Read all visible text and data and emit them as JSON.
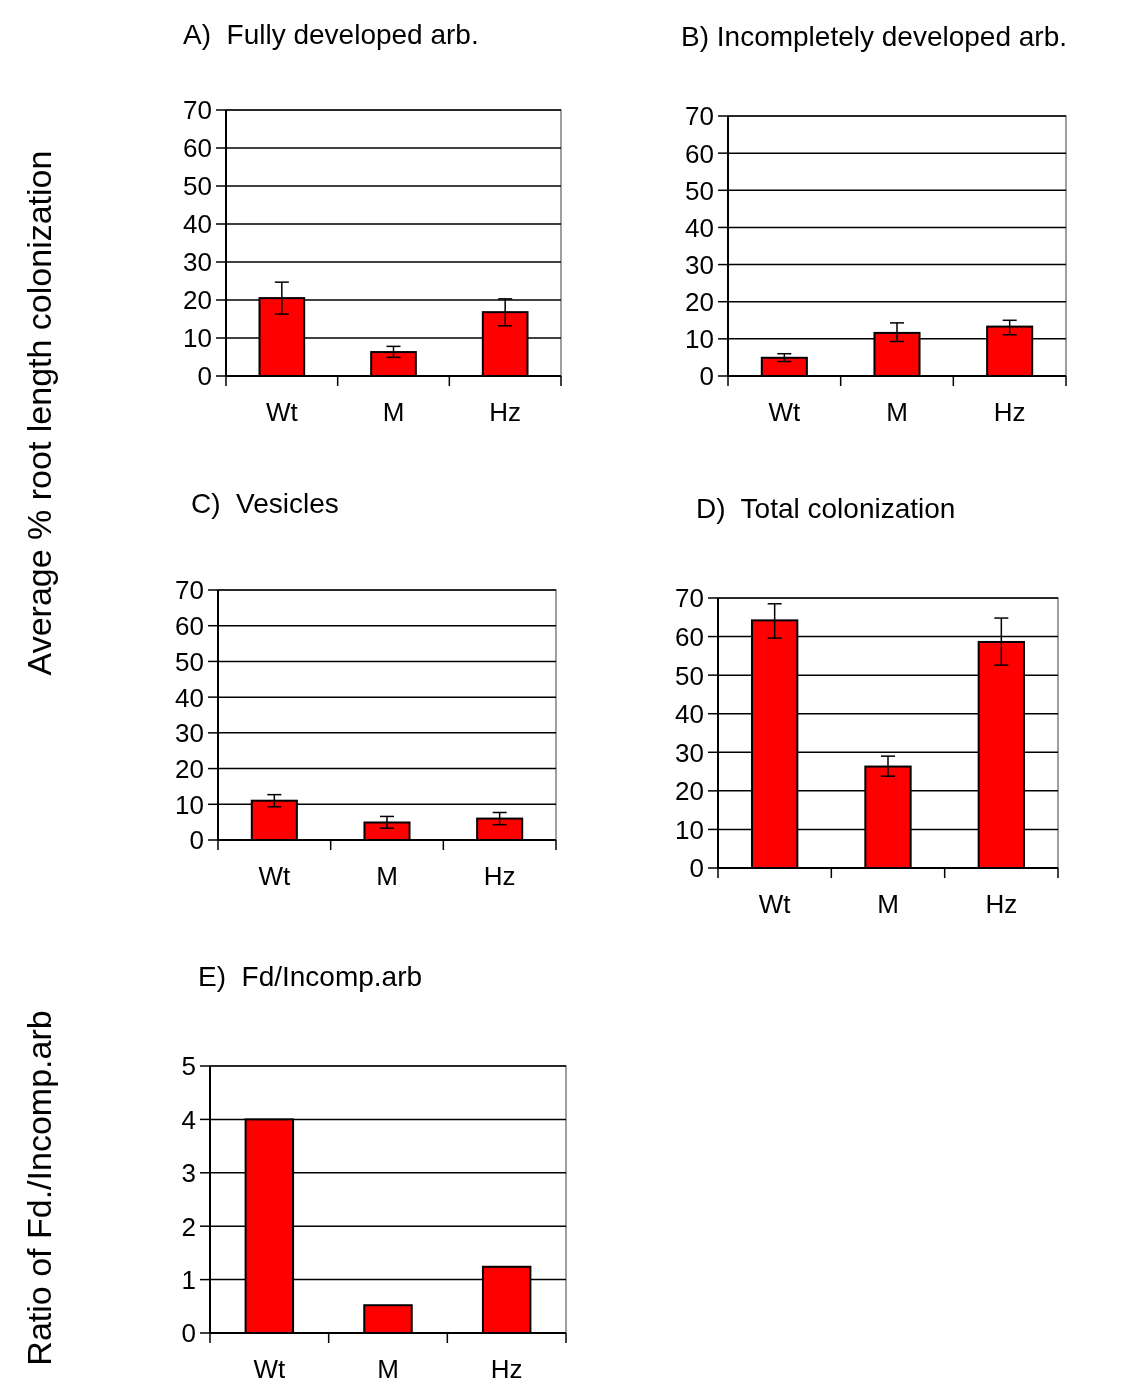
{
  "chart_data": [
    {
      "type": "bar",
      "title": "A)  Fully developed arb.",
      "ylabel": "Average % root length colonization",
      "categories": [
        "Wt",
        "M",
        "Hz"
      ],
      "values": [
        20.5,
        6.3,
        16.8
      ],
      "errors": [
        [
          16.3,
          24.7
        ],
        [
          4.9,
          7.8
        ],
        [
          13.2,
          20.3
        ]
      ],
      "color": "#ff0000",
      "ylim": [
        0,
        70
      ],
      "yticks": [
        0,
        10,
        20,
        30,
        40,
        50,
        60,
        70
      ],
      "grid": "y"
    },
    {
      "type": "bar",
      "title": "B) Incompletely developed arb.",
      "categories": [
        "Wt",
        "M",
        "Hz"
      ],
      "values": [
        4.9,
        11.6,
        13.3
      ],
      "errors": [
        [
          3.9,
          6.0
        ],
        [
          9.3,
          14.3
        ],
        [
          11.1,
          15.0
        ]
      ],
      "color": "#ff0000",
      "ylim": [
        0,
        70
      ],
      "yticks": [
        0,
        10,
        20,
        30,
        40,
        50,
        60,
        70
      ],
      "grid": "y"
    },
    {
      "type": "bar",
      "title": "C)  Vesicles",
      "categories": [
        "Wt",
        "M",
        "Hz"
      ],
      "values": [
        11.0,
        4.9,
        6.0
      ],
      "errors": [
        [
          9.3,
          12.7
        ],
        [
          3.3,
          6.6
        ],
        [
          4.3,
          7.7
        ]
      ],
      "color": "#ff0000",
      "ylim": [
        0,
        70
      ],
      "yticks": [
        0,
        10,
        20,
        30,
        40,
        50,
        60,
        70
      ],
      "grid": "y"
    },
    {
      "type": "bar",
      "title": "D)  Total colonization",
      "categories": [
        "Wt",
        "M",
        "Hz"
      ],
      "values": [
        64.2,
        26.3,
        58.6
      ],
      "errors": [
        [
          59.6,
          68.5
        ],
        [
          23.8,
          29.0
        ],
        [
          52.6,
          64.8
        ]
      ],
      "color": "#ff0000",
      "ylim": [
        0,
        70
      ],
      "yticks": [
        0,
        10,
        20,
        30,
        40,
        50,
        60,
        70
      ],
      "grid": "y"
    },
    {
      "type": "bar",
      "title": "E)  Fd/Incomp.arb",
      "ylabel": "Ratio of Fd./Incomp.arb",
      "categories": [
        "Wt",
        "M",
        "Hz"
      ],
      "values": [
        4.0,
        0.52,
        1.24
      ],
      "color": "#ff0000",
      "ylim": [
        0,
        5
      ],
      "yticks": [
        0,
        1,
        2,
        3,
        4,
        5
      ],
      "grid": "y"
    }
  ]
}
